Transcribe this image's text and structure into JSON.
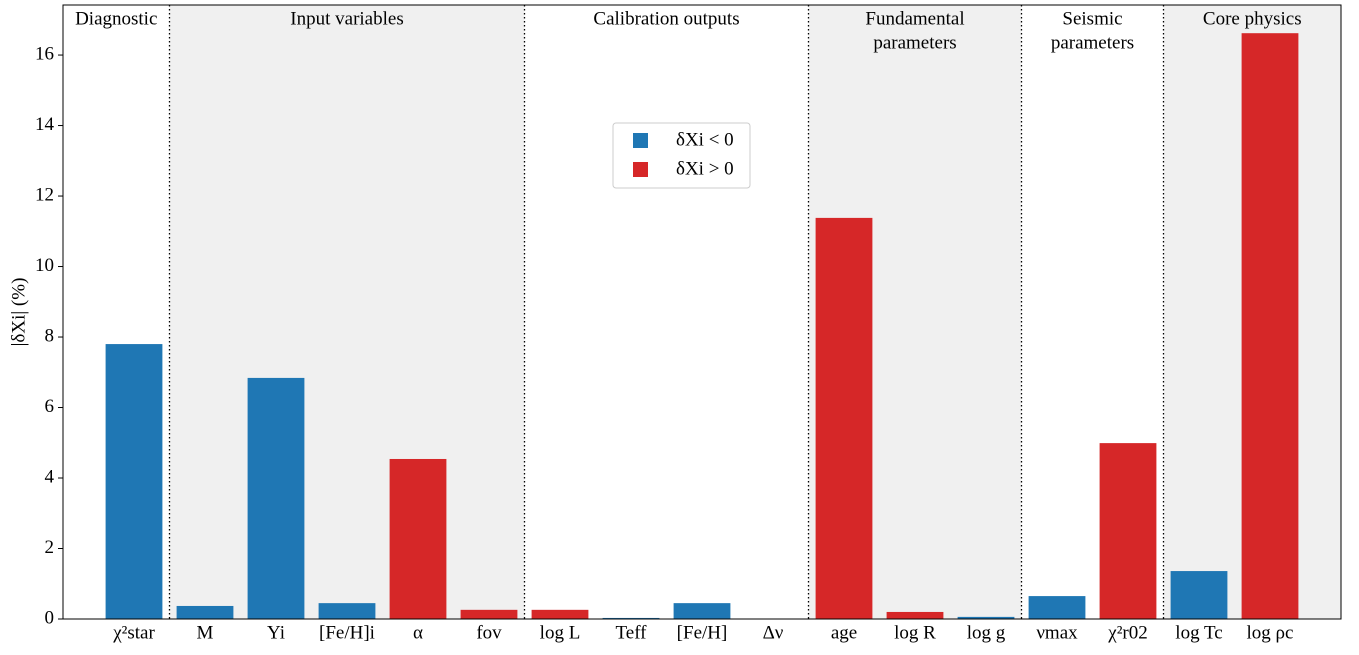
{
  "chart_data": {
    "type": "bar",
    "y_label": "|δXi| (%)",
    "groups": [
      {
        "lines": [
          "Diagnostic"
        ],
        "shaded": false,
        "categories": [
          "χ²star"
        ]
      },
      {
        "lines": [
          "Input variables"
        ],
        "shaded": true,
        "categories": [
          "M",
          "Yi",
          "[Fe/H]i",
          "α",
          "fov"
        ]
      },
      {
        "lines": [
          "Calibration outputs"
        ],
        "shaded": false,
        "categories": [
          "log L",
          "Teff",
          "[Fe/H]",
          "Δν"
        ]
      },
      {
        "lines": [
          "Fundamental",
          "parameters"
        ],
        "shaded": true,
        "categories": [
          "age",
          "log R",
          "log g"
        ]
      },
      {
        "lines": [
          "Seismic",
          "parameters"
        ],
        "shaded": false,
        "categories": [
          "νmax",
          "χ²r02"
        ]
      },
      {
        "lines": [
          "Core physics"
        ],
        "shaded": true,
        "categories": [
          "log Tc",
          "log ρc"
        ]
      }
    ],
    "series": [
      {
        "name": "δXi < 0",
        "color": "#1f77b4",
        "values": [
          7.8,
          0.37,
          6.84,
          0.45,
          null,
          null,
          null,
          0.03,
          0.45,
          null,
          null,
          null,
          0.06,
          0.65,
          null,
          1.36,
          null
        ]
      },
      {
        "name": "δXi > 0",
        "color": "#d62728",
        "values": [
          null,
          null,
          null,
          null,
          4.54,
          0.26,
          0.26,
          null,
          null,
          0.01,
          11.38,
          0.2,
          null,
          null,
          4.99,
          null,
          16.62
        ]
      }
    ],
    "ylim": [
      0,
      17.42
    ],
    "yticks": [
      0,
      2,
      4,
      6,
      8,
      10,
      12,
      14,
      16
    ],
    "legend": "upper-center"
  }
}
